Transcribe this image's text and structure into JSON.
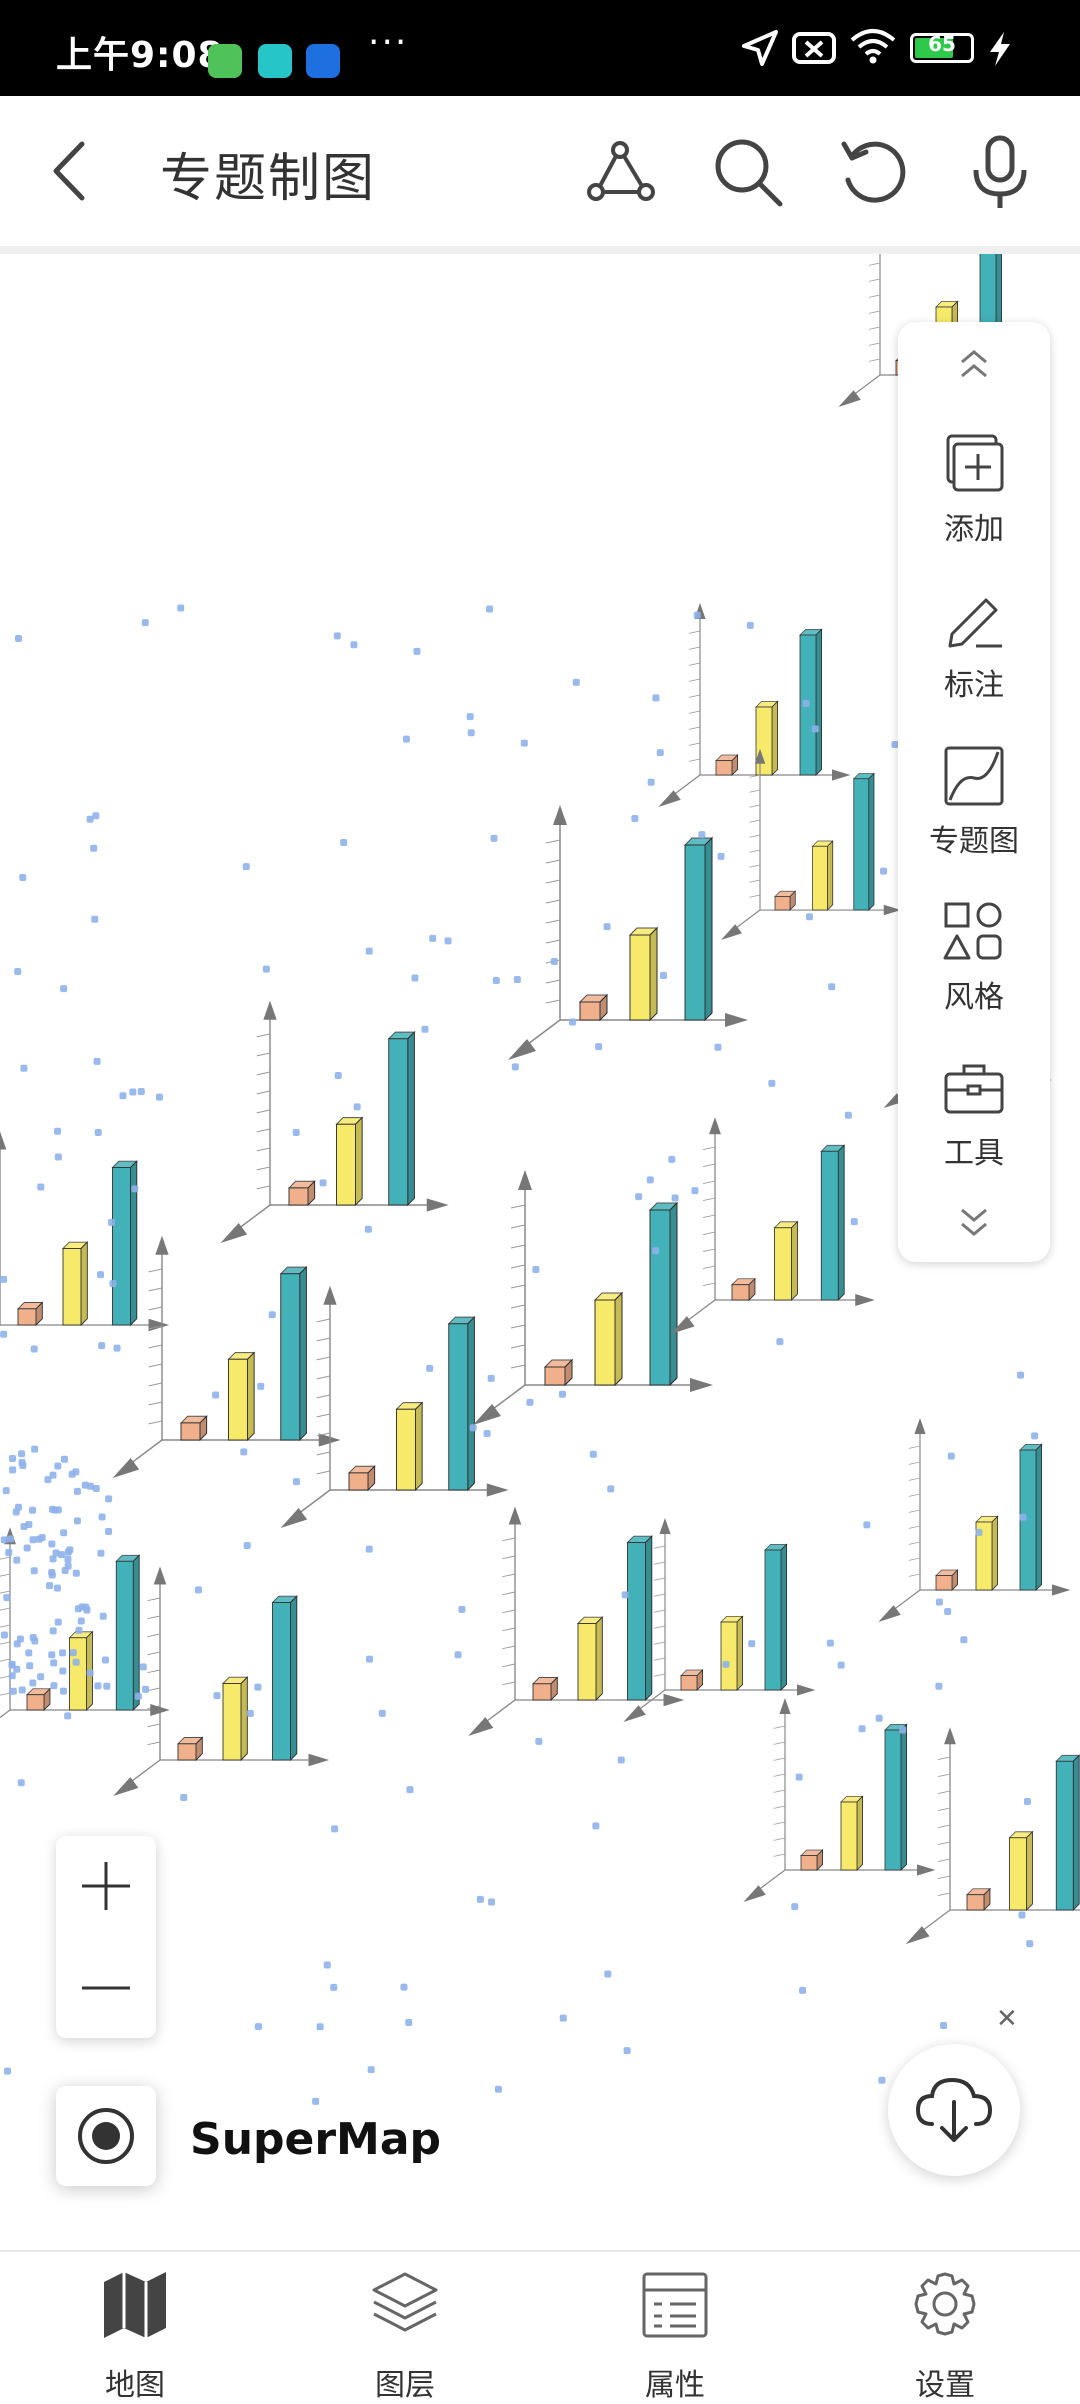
{
  "status_bar": {
    "time": "上午9:08",
    "notification_icons": [
      "android-app-icon",
      "send-app-icon",
      "zhihu-app-icon"
    ],
    "more": "···",
    "battery": "65"
  },
  "header": {
    "back_icon": "chevron-left-icon",
    "title": "专题制图",
    "actions": [
      "path-tool-icon",
      "search-icon",
      "undo-icon",
      "microphone-icon"
    ]
  },
  "side_toolbar": {
    "scroll_up_icon": "chevron-up-icon",
    "items": [
      {
        "label": "添加",
        "icon": "add-layer-icon"
      },
      {
        "label": "标注",
        "icon": "pencil-icon"
      },
      {
        "label": "专题图",
        "icon": "thematic-map-icon"
      },
      {
        "label": "风格",
        "icon": "shapes-icon"
      },
      {
        "label": "工具",
        "icon": "toolbox-icon"
      }
    ],
    "scroll_down_icon": "chevron-down-icon"
  },
  "map": {
    "brand": "SuperMap",
    "zoom_in_icon": "plus-icon",
    "zoom_out_icon": "minus-icon",
    "locate_icon": "target-icon",
    "download_icon": "cloud-download-icon",
    "close_icon": "close-icon",
    "chart_colors": {
      "small": "#f0b08c",
      "mid": "#f7e96a",
      "tall": "#43b1b8"
    }
  },
  "bottom_nav": [
    {
      "label": "地图",
      "icon": "map-icon",
      "active": true
    },
    {
      "label": "图层",
      "icon": "layers-icon",
      "active": false
    },
    {
      "label": "属性",
      "icon": "attribute-table-icon",
      "active": false
    },
    {
      "label": "设置",
      "icon": "settings-icon",
      "active": false
    }
  ]
}
